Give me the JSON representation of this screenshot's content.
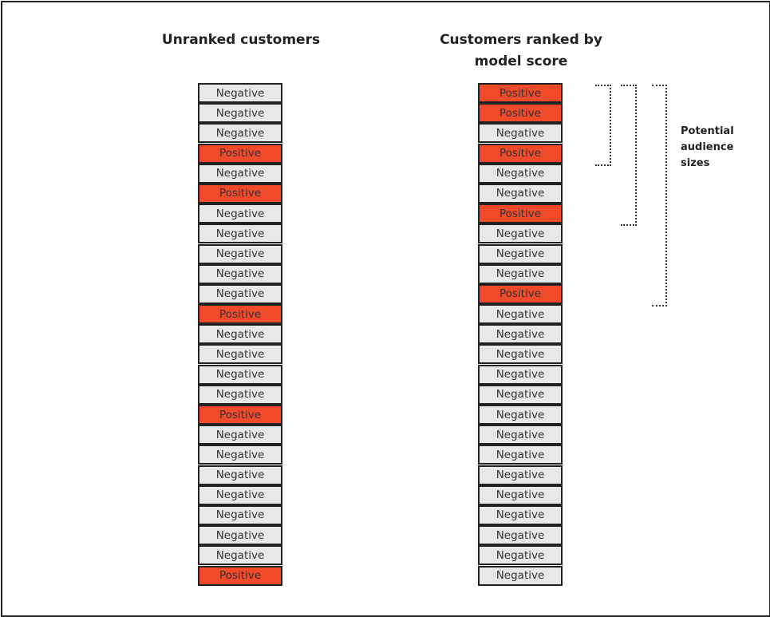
{
  "left_column": {
    "title": "Unranked customers",
    "items": [
      "Negative",
      "Negative",
      "Negative",
      "Positive",
      "Negative",
      "Positive",
      "Negative",
      "Negative",
      "Negative",
      "Negative",
      "Negative",
      "Positive",
      "Negative",
      "Negative",
      "Negative",
      "Negative",
      "Positive",
      "Negative",
      "Negative",
      "Negative",
      "Negative",
      "Negative",
      "Negative",
      "Negative",
      "Positive"
    ]
  },
  "right_column": {
    "title": "Customers ranked by model score",
    "items": [
      "Positive",
      "Positive",
      "Negative",
      "Positive",
      "Negative",
      "Negative",
      "Positive",
      "Negative",
      "Negative",
      "Negative",
      "Positive",
      "Negative",
      "Negative",
      "Negative",
      "Negative",
      "Negative",
      "Negative",
      "Negative",
      "Negative",
      "Negative",
      "Negative",
      "Negative",
      "Negative",
      "Negative",
      "Negative"
    ]
  },
  "audience_label": "Potential\naudience\nsizes",
  "colors": {
    "positive": "#f04a2a",
    "negative": "#e8e8e8",
    "border": "#222222"
  }
}
